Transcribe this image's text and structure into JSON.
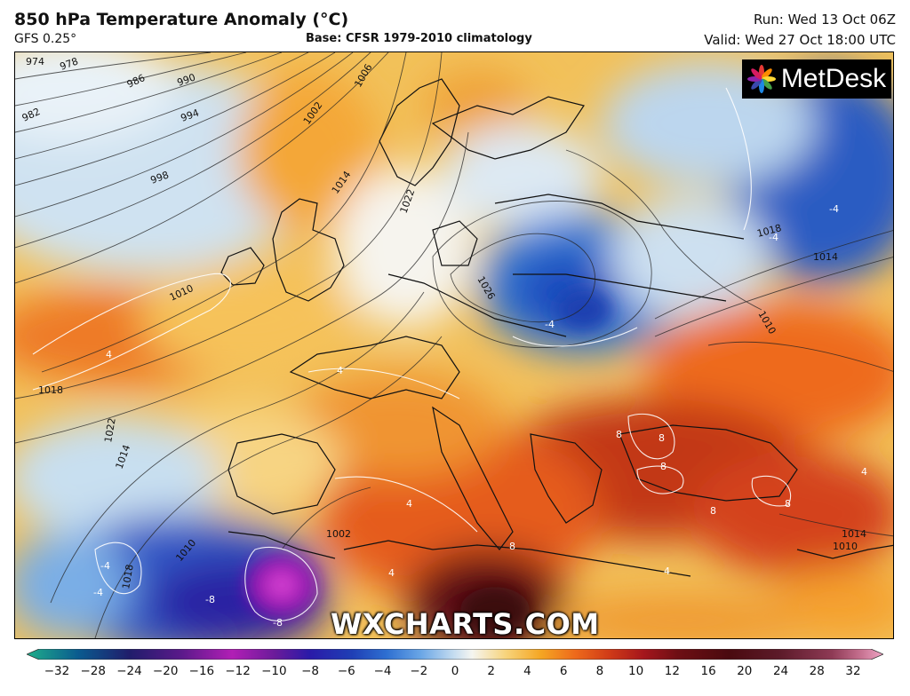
{
  "header": {
    "title": "850 hPa Temperature Anomaly (°C)",
    "model": "GFS 0.25°",
    "base": "Base: CFSR 1979-2010 climatology",
    "run": "Run: Wed 13 Oct 06Z",
    "valid": "Valid: Wed 27 Oct 18:00 UTC"
  },
  "logo": {
    "text": "MetDesk",
    "icon": "metdesk-flower-icon"
  },
  "watermark": "WXCHARTS.COM",
  "colorbar": {
    "ticks": [
      "−32",
      "−28",
      "−24",
      "−20",
      "−16",
      "−12",
      "−10",
      "−8",
      "−6",
      "−4",
      "−2",
      "0",
      "2",
      "4",
      "6",
      "8",
      "10",
      "12",
      "16",
      "20",
      "24",
      "28",
      "32"
    ],
    "colors": [
      "#1fae8a",
      "#0a5b8f",
      "#201d6b",
      "#5a1a8a",
      "#b11fb5",
      "#6a1b9a",
      "#2a1aa8",
      "#1f3fb5",
      "#2e6fd1",
      "#6aa6e6",
      "#c8def0",
      "#f5f5f0",
      "#f7d37a",
      "#f5a623",
      "#ee6a1b",
      "#d03b17",
      "#a5161c",
      "#6e0f14",
      "#4a0a0f",
      "#5d1b2a",
      "#8e3a55",
      "#c06a89",
      "#f0a6c5"
    ]
  },
  "map": {
    "isobars": [
      "974",
      "978",
      "982",
      "986",
      "990",
      "994",
      "998",
      "1002",
      "1006",
      "1010",
      "1014",
      "1018",
      "1022",
      "1026",
      "1018",
      "1014",
      "1010",
      "1014",
      "1018",
      "1022",
      "1010",
      "1014",
      "1010",
      "1002"
    ],
    "anomaly_labels": [
      "-4",
      "4",
      "-4",
      "-4",
      "4",
      "8",
      "8",
      "8",
      "8",
      "8",
      "8",
      "-8",
      "-8",
      "4",
      "4",
      "4",
      "-4",
      "-4",
      "4"
    ]
  }
}
